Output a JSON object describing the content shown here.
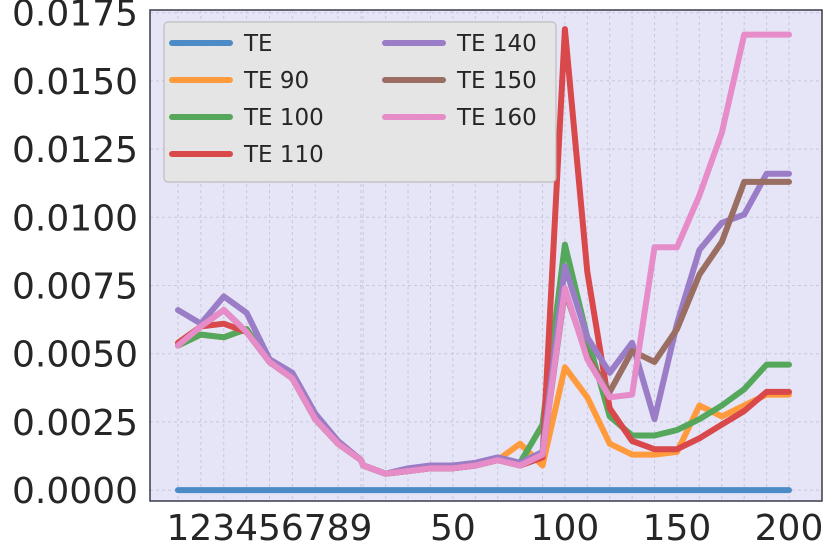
{
  "chart_data": {
    "type": "line",
    "title": "",
    "xlabel": "",
    "ylabel": "",
    "xlim": [
      -16,
      203
    ],
    "ylim": [
      -0.0004,
      0.0176
    ],
    "x": [
      1,
      2,
      3,
      4,
      5,
      6,
      7,
      8,
      9,
      10,
      20,
      30,
      40,
      50,
      60,
      70,
      80,
      90,
      100,
      110,
      120,
      130,
      140,
      150,
      160,
      170,
      180,
      190,
      200
    ],
    "x_tick_labels": [
      {
        "value": 1,
        "label": "1"
      },
      {
        "value": 2,
        "label": "2"
      },
      {
        "value": 3,
        "label": "3"
      },
      {
        "value": 4,
        "label": "4"
      },
      {
        "value": 5,
        "label": "5"
      },
      {
        "value": 6,
        "label": "6"
      },
      {
        "value": 7,
        "label": "7"
      },
      {
        "value": 8,
        "label": "8"
      },
      {
        "value": 9,
        "label": "9"
      },
      {
        "value": 50,
        "label": "50"
      },
      {
        "value": 100,
        "label": "100"
      },
      {
        "value": 150,
        "label": "150"
      },
      {
        "value": 200,
        "label": "200"
      }
    ],
    "y_tick_labels": [
      {
        "value": 0.0,
        "label": "0.0000"
      },
      {
        "value": 0.0025,
        "label": "0.0025"
      },
      {
        "value": 0.005,
        "label": "0.0050"
      },
      {
        "value": 0.0075,
        "label": "0.0075"
      },
      {
        "value": 0.01,
        "label": "0.0100"
      },
      {
        "value": 0.0125,
        "label": "0.0125"
      },
      {
        "value": 0.015,
        "label": "0.0150"
      },
      {
        "value": 0.0175,
        "label": "0.0175"
      }
    ],
    "x_minor_grid": [
      10,
      20,
      30,
      40,
      60,
      70,
      80,
      90,
      110,
      120,
      130,
      140,
      160,
      170,
      180,
      190
    ],
    "grid": true,
    "legend_position": "top-left",
    "series": [
      {
        "name": "TE",
        "color": "#4c8bc5",
        "values": [
          0,
          0,
          0,
          0,
          0,
          0,
          0,
          0,
          0,
          0,
          0,
          0,
          0,
          0,
          0,
          0,
          0,
          0,
          0,
          0,
          0,
          0,
          0,
          0,
          0,
          0,
          0,
          0,
          0
        ]
      },
      {
        "name": "TE 90",
        "color": "#ff9b3d",
        "values": [
          0.0053,
          0.0057,
          0.0056,
          0.0059,
          0.0047,
          0.0041,
          0.0026,
          0.0017,
          0.0011,
          0.0009,
          0.0006,
          0.0007,
          0.0008,
          0.0008,
          0.0009,
          0.0011,
          0.0017,
          0.0009,
          0.0045,
          0.0034,
          0.0017,
          0.0013,
          0.0013,
          0.0014,
          0.0031,
          0.0027,
          0.0031,
          0.0035,
          0.0035
        ]
      },
      {
        "name": "TE 100",
        "color": "#55a85b",
        "values": [
          0.0053,
          0.0057,
          0.0056,
          0.0059,
          0.0047,
          0.0041,
          0.0026,
          0.0017,
          0.0011,
          0.0009,
          0.0006,
          0.0007,
          0.0008,
          0.0008,
          0.0009,
          0.0011,
          0.001,
          0.0024,
          0.009,
          0.0056,
          0.0027,
          0.002,
          0.002,
          0.0022,
          0.0026,
          0.0031,
          0.0037,
          0.0046,
          0.0046
        ]
      },
      {
        "name": "TE 110",
        "color": "#d9484a",
        "values": [
          0.0054,
          0.006,
          0.0061,
          0.0058,
          0.0047,
          0.0041,
          0.0026,
          0.0017,
          0.0011,
          0.0009,
          0.0006,
          0.0007,
          0.0008,
          0.0008,
          0.0009,
          0.0011,
          0.0009,
          0.0012,
          0.0169,
          0.008,
          0.003,
          0.0018,
          0.0015,
          0.0015,
          0.0019,
          0.0024,
          0.0029,
          0.0036,
          0.0036
        ]
      },
      {
        "name": "TE 140",
        "color": "#9b7cc6",
        "values": [
          0.0066,
          0.0061,
          0.0071,
          0.0065,
          0.0048,
          0.0043,
          0.0028,
          0.0018,
          0.0011,
          0.0009,
          0.0006,
          0.0008,
          0.0009,
          0.0009,
          0.001,
          0.0012,
          0.001,
          0.0014,
          0.0082,
          0.0056,
          0.0043,
          0.0054,
          0.0026,
          0.0061,
          0.0088,
          0.0098,
          0.0101,
          0.0116,
          0.0116
        ]
      },
      {
        "name": "TE 150",
        "color": "#9a6e62",
        "values": [
          0.0053,
          0.006,
          0.0066,
          0.0058,
          0.0047,
          0.0041,
          0.0026,
          0.0017,
          0.0011,
          0.0009,
          0.0006,
          0.0007,
          0.0008,
          0.0008,
          0.0009,
          0.0011,
          0.0009,
          0.0013,
          0.0073,
          0.0049,
          0.0036,
          0.0051,
          0.0047,
          0.0059,
          0.0079,
          0.0091,
          0.0113,
          0.0113,
          0.0113
        ]
      },
      {
        "name": "TE 160",
        "color": "#e68cc8",
        "values": [
          0.0053,
          0.006,
          0.0066,
          0.0058,
          0.0047,
          0.0041,
          0.0026,
          0.0017,
          0.0011,
          0.0009,
          0.0006,
          0.0007,
          0.0008,
          0.0008,
          0.0009,
          0.0011,
          0.0009,
          0.0013,
          0.0074,
          0.0048,
          0.0034,
          0.0035,
          0.0089,
          0.0089,
          0.0108,
          0.0131,
          0.0167,
          0.0167,
          0.0167
        ]
      }
    ],
    "colors": {
      "plot_background": "#e5e5f7",
      "grid": "#c8c8da",
      "axis_frame": "#3a3a4a",
      "tick_text": "#262626",
      "legend_background": "#e6e6e6",
      "legend_border": "#bbbbbb"
    }
  }
}
